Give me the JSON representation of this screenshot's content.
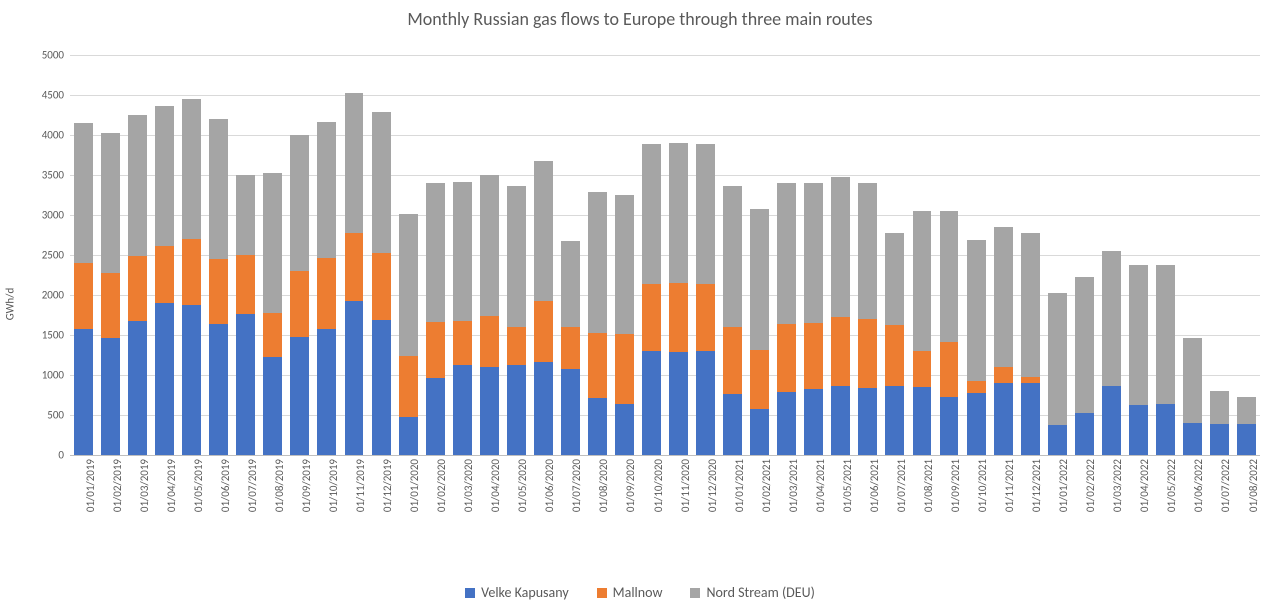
{
  "chart": {
    "type": "stacked-bar",
    "title": "Monthly Russian gas flows to Europe through three main routes",
    "title_fontsize": 18,
    "ylabel": "GWh/d",
    "label_fontsize": 11,
    "ylim": [
      0,
      5000
    ],
    "ytick_step": 500,
    "yticks": [
      0,
      500,
      1000,
      1500,
      2000,
      2500,
      3000,
      3500,
      4000,
      4500,
      5000
    ],
    "background_color": "#ffffff",
    "grid_color": "#d9d9d9",
    "axis_color": "#bfbfbf",
    "text_color": "#595959",
    "font_family": "Calibri",
    "tick_fontsize": 11,
    "legend_fontsize": 14,
    "bar_width": 0.7,
    "series": [
      {
        "name": "Velke Kapusany",
        "color": "#4472c4"
      },
      {
        "name": "Mallnow",
        "color": "#ed7d31"
      },
      {
        "name": "Nord Stream (DEU)",
        "color": "#a5a5a5"
      }
    ],
    "categories": [
      "01/01/2019",
      "01/02/2019",
      "01/03/2019",
      "01/04/2019",
      "01/05/2019",
      "01/06/2019",
      "01/07/2019",
      "01/08/2019",
      "01/09/2019",
      "01/10/2019",
      "01/11/2019",
      "01/12/2019",
      "01/01/2020",
      "01/02/2020",
      "01/03/2020",
      "01/04/2020",
      "01/05/2020",
      "01/06/2020",
      "01/07/2020",
      "01/08/2020",
      "01/09/2020",
      "01/10/2020",
      "01/11/2020",
      "01/12/2020",
      "01/01/2021",
      "01/02/2021",
      "01/03/2021",
      "01/04/2021",
      "01/05/2021",
      "01/06/2021",
      "01/07/2021",
      "01/08/2021",
      "01/09/2021",
      "01/10/2021",
      "01/11/2021",
      "01/12/2021",
      "01/01/2022",
      "01/02/2022",
      "01/03/2022",
      "01/04/2022",
      "01/05/2022",
      "01/06/2022",
      "01/07/2022",
      "01/08/2022"
    ],
    "values": {
      "Velke Kapusany": [
        1570,
        1460,
        1670,
        1900,
        1870,
        1640,
        1760,
        1220,
        1480,
        1570,
        1930,
        1690,
        480,
        960,
        1120,
        1100,
        1120,
        1160,
        1080,
        710,
        640,
        1300,
        1290,
        1300,
        760,
        580,
        790,
        830,
        860,
        840,
        860,
        850,
        720,
        770,
        900,
        900,
        370,
        520,
        860,
        620,
        640,
        400,
        390,
        390
      ],
      "Mallnow": [
        830,
        820,
        820,
        710,
        830,
        810,
        740,
        560,
        820,
        890,
        850,
        840,
        760,
        700,
        560,
        640,
        480,
        770,
        520,
        820,
        870,
        840,
        860,
        840,
        840,
        730,
        850,
        820,
        870,
        860,
        770,
        450,
        690,
        160,
        200,
        80,
        0,
        0,
        0,
        0,
        0,
        0,
        0,
        0
      ],
      "Nord Stream (DEU)": [
        1750,
        1750,
        1760,
        1750,
        1750,
        1750,
        1000,
        1750,
        1700,
        1700,
        1740,
        1760,
        1770,
        1740,
        1730,
        1760,
        1760,
        1750,
        1070,
        1760,
        1740,
        1750,
        1750,
        1750,
        1760,
        1770,
        1760,
        1750,
        1750,
        1700,
        1140,
        1750,
        1640,
        1760,
        1750,
        1800,
        1650,
        1700,
        1690,
        1760,
        1740,
        1060,
        410,
        340
      ]
    }
  }
}
